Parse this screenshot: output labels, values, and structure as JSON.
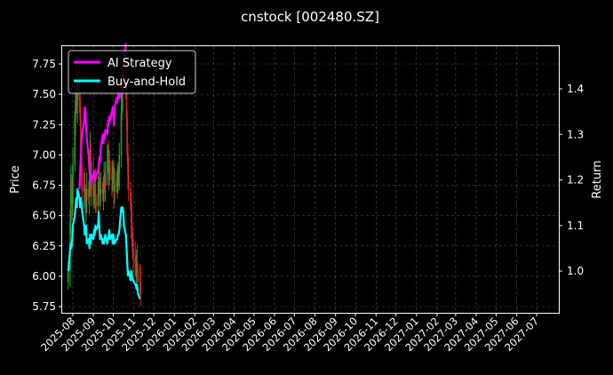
{
  "chart_data": {
    "type": "line",
    "title": "cnstock [002480.SZ]",
    "ylabel": "Price",
    "y2label": "Return",
    "ylim": [
      5.72,
      7.9
    ],
    "y2lim": [
      0.915,
      1.495
    ],
    "yticks": [
      "5.75",
      "6.00",
      "6.25",
      "6.50",
      "6.75",
      "7.00",
      "7.25",
      "7.50",
      "7.75"
    ],
    "y2ticks": [
      "1.0",
      "1.1",
      "1.2",
      "1.3",
      "1.4"
    ],
    "xticks": [
      "2025-08",
      "2025-09",
      "2025-10",
      "2025-11",
      "2025-12",
      "2026-01",
      "2026-02",
      "2026-03",
      "2026-04",
      "2026-05",
      "2026-06",
      "2026-07",
      "2026-08",
      "2026-09",
      "2026-10",
      "2026-11",
      "2026-12",
      "2027-01",
      "2027-02",
      "2027-03",
      "2027-04",
      "2027-05",
      "2027-06",
      "2027-07"
    ],
    "grid": true,
    "legend_position": "top-left",
    "colors": {
      "up": "#2ca02c",
      "down": "#d62728",
      "strategy": "#ff00ff",
      "buyhold": "#00ffff",
      "background": "#000000",
      "grid": "#555555"
    },
    "price": {
      "start_date": "2025-07-25",
      "close": [
        6.05,
        6.45,
        6.78,
        6.72,
        6.6,
        6.92,
        7.3,
        7.45,
        7.62,
        7.4,
        7.6,
        7.45,
        7.3,
        7.05,
        6.85,
        6.7,
        6.75,
        6.7,
        6.58,
        6.62,
        6.72,
        6.65,
        6.8,
        7.05,
        6.72,
        6.85,
        6.65,
        6.7,
        6.75,
        6.62,
        6.58,
        6.68,
        6.82,
        6.72,
        6.68,
        6.72,
        6.68,
        6.72,
        6.8,
        6.75,
        6.85,
        6.95,
        7.02,
        6.85,
        6.9,
        6.85,
        6.8,
        6.82,
        6.85,
        6.7,
        6.75,
        6.8,
        6.78,
        6.8,
        6.85,
        7.0,
        7.35,
        7.5,
        7.62,
        7.7,
        7.8,
        7.6,
        7.3,
        7.0,
        6.85,
        6.72,
        6.6,
        6.45,
        6.35,
        6.2,
        6.15,
        6.1,
        6.05,
        6.12,
        6.05,
        6.0,
        5.95,
        5.85
      ]
    },
    "series": [
      {
        "name": "AI Strategy",
        "start_date": "2025-08-11",
        "values": [
          1.18,
          1.22,
          1.25,
          1.28,
          1.3,
          1.33,
          1.36,
          1.35,
          1.32,
          1.29,
          1.25,
          1.22,
          1.2,
          1.19,
          1.2,
          1.21,
          1.22,
          1.21,
          1.2,
          1.21,
          1.22,
          1.23,
          1.25,
          1.24,
          1.27,
          1.3,
          1.28,
          1.3,
          1.29,
          1.31,
          1.3,
          1.33,
          1.32,
          1.34,
          1.33,
          1.35,
          1.36,
          1.34,
          1.32,
          1.36,
          1.38,
          1.37,
          1.38,
          1.39,
          1.38,
          1.39,
          1.41,
          1.43,
          1.45,
          1.47,
          1.5
        ]
      },
      {
        "name": "Buy-and-Hold",
        "start_date": "2025-07-25",
        "values": [
          1.0,
          1.05,
          1.06,
          1.05,
          1.07,
          1.1,
          1.12,
          1.14,
          1.16,
          1.14,
          1.18,
          1.16,
          1.14,
          1.16,
          1.15,
          1.13,
          1.1,
          1.08,
          1.08,
          1.1,
          1.06,
          1.07,
          1.05,
          1.08,
          1.06,
          1.08,
          1.07,
          1.09,
          1.08,
          1.1,
          1.09,
          1.1,
          1.13,
          1.09,
          1.07,
          1.08,
          1.06,
          1.07,
          1.06,
          1.07,
          1.08,
          1.06,
          1.07,
          1.08,
          1.09,
          1.07,
          1.08,
          1.06,
          1.08,
          1.07,
          1.06,
          1.07,
          1.07,
          1.08,
          1.08,
          1.09,
          1.14,
          1.13,
          1.14,
          1.13,
          1.1,
          1.08,
          1.05,
          1.02,
          0.99,
          1.0,
          0.98,
          1.0,
          0.99,
          0.98,
          0.98,
          0.97,
          0.97,
          0.96,
          0.97,
          0.95,
          0.94,
          0.94
        ]
      }
    ]
  }
}
